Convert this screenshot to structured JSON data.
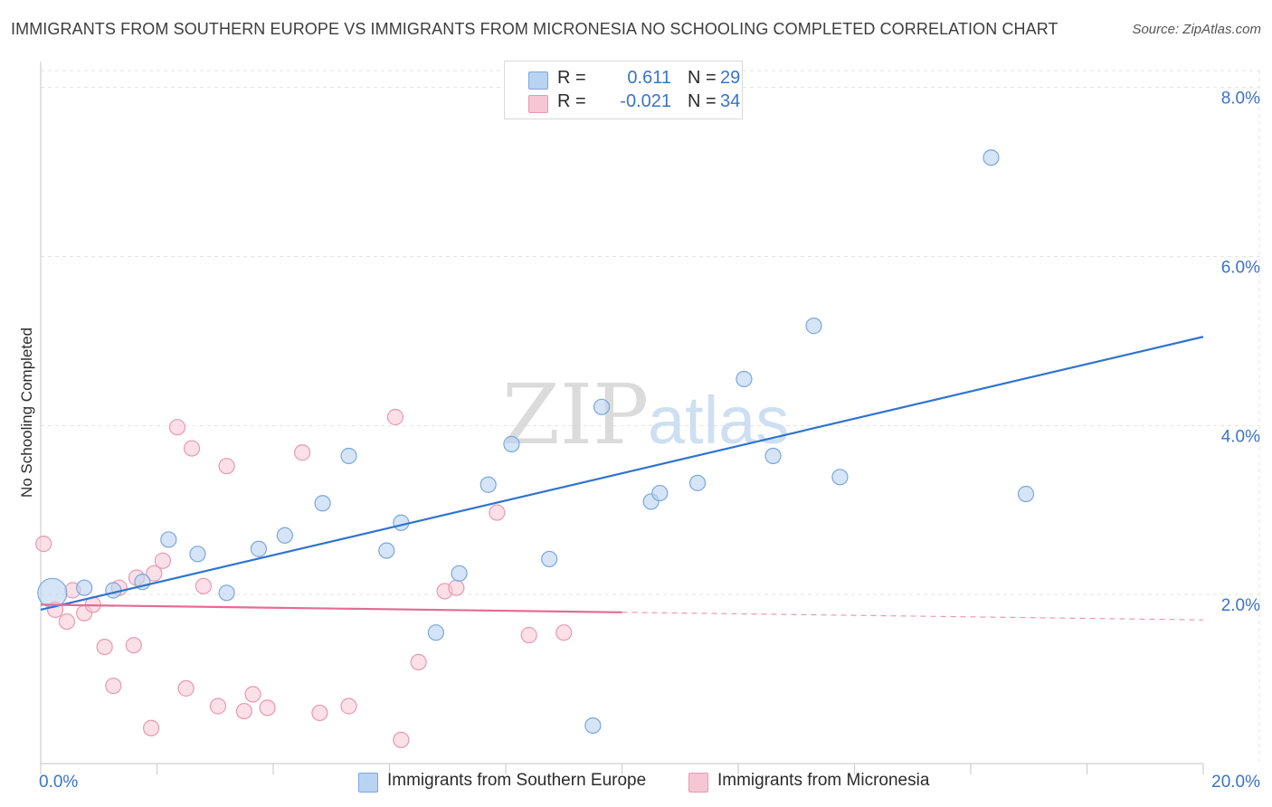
{
  "header": {
    "title": "IMMIGRANTS FROM SOUTHERN EUROPE VS IMMIGRANTS FROM MICRONESIA NO SCHOOLING COMPLETED CORRELATION CHART",
    "source": "Source: ZipAtlas.com"
  },
  "watermark": {
    "zip": "ZIP",
    "atlas": "atlas"
  },
  "legend": {
    "series1": {
      "r_label": "R =",
      "r_value": "0.611",
      "n_label": "N =",
      "n_value": "29"
    },
    "series2": {
      "r_label": "R =",
      "r_value": "-0.021",
      "n_label": "N =",
      "n_value": "34"
    }
  },
  "colors": {
    "blue_fill": "#b9d3f2",
    "blue_stroke": "#7aa7dc",
    "blue_line": "#2f73d0",
    "pink_fill": "#f7c6d4",
    "pink_stroke": "#e899b1",
    "pink_line": "#e56b96",
    "axis_text": "#3a73c9"
  },
  "chart_data": {
    "type": "scatter",
    "title": "IMMIGRANTS FROM SOUTHERN EUROPE VS IMMIGRANTS FROM MICRONESIA NO SCHOOLING COMPLETED CORRELATION CHART",
    "xlabel": "",
    "ylabel": "No Schooling Completed",
    "xlim": [
      0,
      20
    ],
    "ylim": [
      0,
      8.2
    ],
    "x_tick_labels": [
      "0.0%",
      "20.0%"
    ],
    "y_ticks": [
      {
        "value": 2,
        "label": "2.0%"
      },
      {
        "value": 4,
        "label": "4.0%"
      },
      {
        "value": 6,
        "label": "6.0%"
      },
      {
        "value": 8,
        "label": "8.0%"
      }
    ],
    "legend_position": "top-center",
    "series": [
      {
        "name": "Immigrants from Southern Europe",
        "color": "#b9d3f2",
        "points": [
          {
            "x": 0.2,
            "y": 2.02,
            "size": "large"
          },
          {
            "x": 0.75,
            "y": 2.08
          },
          {
            "x": 1.25,
            "y": 2.05
          },
          {
            "x": 1.75,
            "y": 2.15
          },
          {
            "x": 2.2,
            "y": 2.65
          },
          {
            "x": 2.7,
            "y": 2.48
          },
          {
            "x": 3.2,
            "y": 2.02
          },
          {
            "x": 3.75,
            "y": 2.54
          },
          {
            "x": 4.2,
            "y": 2.7
          },
          {
            "x": 4.85,
            "y": 3.08
          },
          {
            "x": 5.3,
            "y": 3.64
          },
          {
            "x": 5.95,
            "y": 2.52
          },
          {
            "x": 6.2,
            "y": 2.85
          },
          {
            "x": 6.8,
            "y": 1.55
          },
          {
            "x": 7.2,
            "y": 2.25
          },
          {
            "x": 7.7,
            "y": 3.3
          },
          {
            "x": 8.1,
            "y": 3.78
          },
          {
            "x": 8.75,
            "y": 2.42
          },
          {
            "x": 9.5,
            "y": 0.45
          },
          {
            "x": 9.65,
            "y": 4.22
          },
          {
            "x": 10.5,
            "y": 3.1
          },
          {
            "x": 10.65,
            "y": 3.2
          },
          {
            "x": 11.3,
            "y": 3.32
          },
          {
            "x": 12.1,
            "y": 4.55
          },
          {
            "x": 12.6,
            "y": 3.64
          },
          {
            "x": 13.3,
            "y": 5.18
          },
          {
            "x": 13.75,
            "y": 3.39
          },
          {
            "x": 16.35,
            "y": 7.17
          },
          {
            "x": 16.95,
            "y": 3.19
          }
        ],
        "trend": {
          "x_start": 0,
          "y_start": 1.82,
          "x_end": 20,
          "y_end": 5.05
        }
      },
      {
        "name": "Immigrants from Micronesia",
        "color": "#f7c6d4",
        "points": [
          {
            "x": 0.05,
            "y": 2.6
          },
          {
            "x": 0.25,
            "y": 1.82
          },
          {
            "x": 0.45,
            "y": 1.68
          },
          {
            "x": 0.55,
            "y": 2.05
          },
          {
            "x": 0.75,
            "y": 1.78
          },
          {
            "x": 0.9,
            "y": 1.88
          },
          {
            "x": 1.1,
            "y": 1.38
          },
          {
            "x": 1.25,
            "y": 0.92
          },
          {
            "x": 1.35,
            "y": 2.08
          },
          {
            "x": 1.6,
            "y": 1.4
          },
          {
            "x": 1.65,
            "y": 2.2
          },
          {
            "x": 1.9,
            "y": 0.42
          },
          {
            "x": 1.95,
            "y": 2.25
          },
          {
            "x": 2.1,
            "y": 2.4
          },
          {
            "x": 2.35,
            "y": 3.98
          },
          {
            "x": 2.5,
            "y": 0.89
          },
          {
            "x": 2.6,
            "y": 3.73
          },
          {
            "x": 2.8,
            "y": 2.1
          },
          {
            "x": 3.05,
            "y": 0.68
          },
          {
            "x": 3.2,
            "y": 3.52
          },
          {
            "x": 3.5,
            "y": 0.62
          },
          {
            "x": 3.65,
            "y": 0.82
          },
          {
            "x": 3.9,
            "y": 0.66
          },
          {
            "x": 4.5,
            "y": 3.68
          },
          {
            "x": 4.8,
            "y": 0.6
          },
          {
            "x": 5.3,
            "y": 0.68
          },
          {
            "x": 6.2,
            "y": 0.28
          },
          {
            "x": 6.1,
            "y": 4.1
          },
          {
            "x": 6.5,
            "y": 1.2
          },
          {
            "x": 6.95,
            "y": 2.04
          },
          {
            "x": 7.15,
            "y": 2.08
          },
          {
            "x": 7.85,
            "y": 2.97
          },
          {
            "x": 8.4,
            "y": 1.52
          },
          {
            "x": 9.0,
            "y": 1.55
          }
        ],
        "trend": {
          "x_start": 0,
          "y_start": 1.88,
          "x_end": 20,
          "y_end": 1.7,
          "solid_until_x": 10
        }
      }
    ]
  },
  "bottom_legend": {
    "item1": "Immigrants from Southern Europe",
    "item2": "Immigrants from Micronesia"
  }
}
